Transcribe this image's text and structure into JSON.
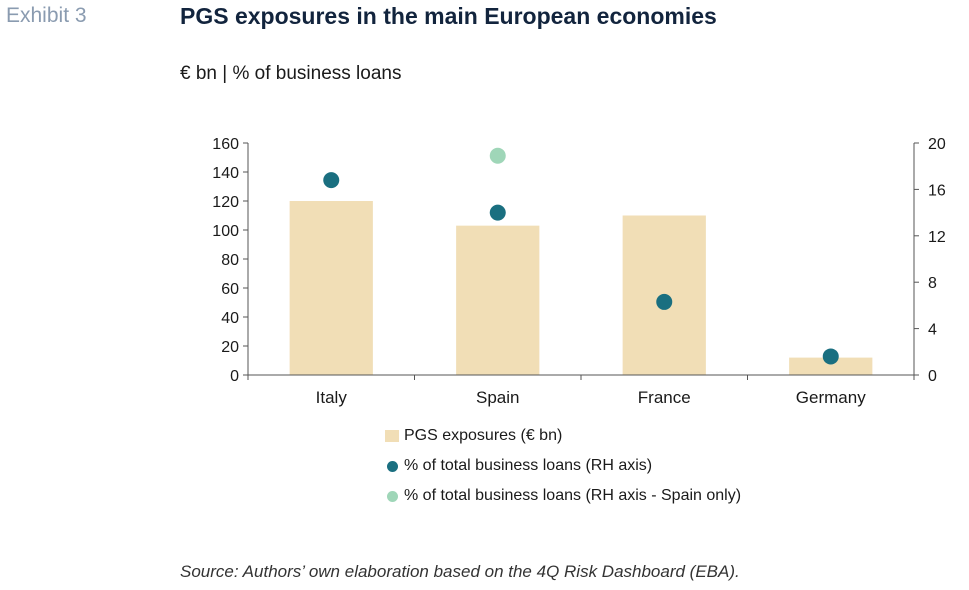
{
  "header": {
    "exhibit_label": "Exhibit 3",
    "title": "PGS exposures in the main European economies",
    "subtitle": "€ bn | % of business loans"
  },
  "chart_data": {
    "type": "bar",
    "categories": [
      "Italy",
      "Spain",
      "France",
      "Germany"
    ],
    "series": [
      {
        "name": "PGS exposures (€ bn)",
        "kind": "bar",
        "axis": "left",
        "color": "#f1deb6",
        "values": [
          120,
          103,
          110,
          12
        ]
      },
      {
        "name": "% of total business loans (RH axis)",
        "kind": "scatter",
        "axis": "right",
        "color": "#1a6f80",
        "values": [
          16.8,
          14,
          6.3,
          1.6
        ]
      },
      {
        "name": "% of total business loans (RH axis - Spain only)",
        "kind": "scatter",
        "axis": "right",
        "color": "#9fd6b8",
        "values": [
          null,
          18.9,
          null,
          null
        ]
      }
    ],
    "y_left": {
      "min": 0,
      "max": 160,
      "ticks": [
        0,
        20,
        40,
        60,
        80,
        100,
        120,
        140,
        160
      ]
    },
    "y_right": {
      "min": 0,
      "max": 20,
      "ticks": [
        0,
        4,
        8,
        12,
        16,
        20
      ]
    },
    "grid": false,
    "legend_position": "bottom-center"
  },
  "source": "Source: Authors’ own elaboration based on the 4Q Risk Dashboard (EBA)."
}
